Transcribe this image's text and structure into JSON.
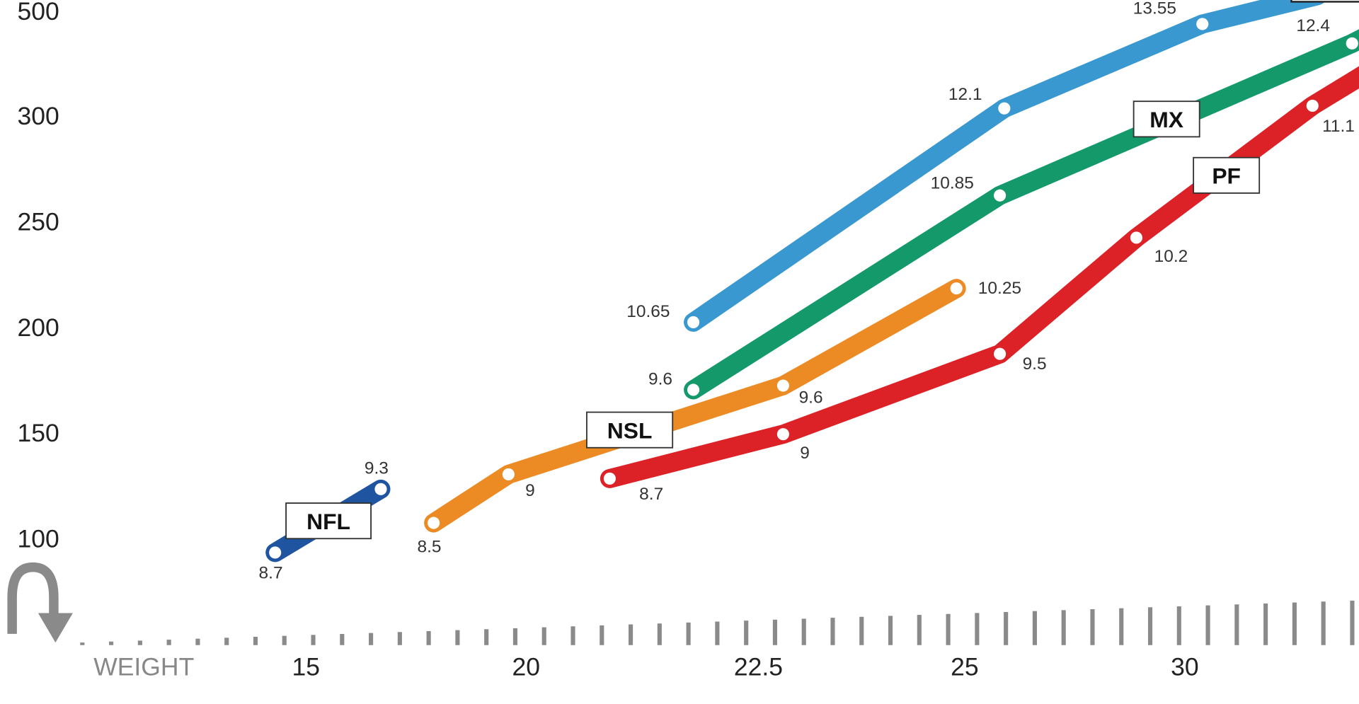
{
  "chart_data": {
    "type": "line",
    "title": "",
    "xlabel": "WEIGHT",
    "ylabel": "",
    "x_ticks": [
      "15",
      "20",
      "22.5",
      "25",
      "30"
    ],
    "y_ticks": [
      "500",
      "300",
      "250",
      "200",
      "150",
      "100"
    ],
    "grid": false,
    "series": [
      {
        "name": "NFL",
        "color": "#1f55a0",
        "points": [
          {
            "x": 14.3,
            "y": 93,
            "label": "8.7"
          },
          {
            "x": 16.7,
            "y": 123,
            "label": "9.3"
          }
        ]
      },
      {
        "name": "NSL",
        "color": "#ec8a23",
        "points": [
          {
            "x": 17.9,
            "y": 107,
            "label": "8.5"
          },
          {
            "x": 19.6,
            "y": 130,
            "label": "9"
          },
          {
            "x": 22.8,
            "y": 172,
            "label": "9.6"
          },
          {
            "x": 24.9,
            "y": 218,
            "label": "10.25"
          }
        ]
      },
      {
        "name": "PF",
        "color": "#dc2127",
        "points": [
          {
            "x": 20.9,
            "y": 128,
            "label": "8.7"
          },
          {
            "x": 22.8,
            "y": 149,
            "label": "9"
          },
          {
            "x": 25.8,
            "y": 187,
            "label": "9.5"
          },
          {
            "x": 28.9,
            "y": 242,
            "label": "10.2"
          },
          {
            "x": 32.9,
            "y": 318,
            "label": "11.1"
          }
        ]
      },
      {
        "name": "MX",
        "color": "#14996b",
        "points": [
          {
            "x": 21.8,
            "y": 170,
            "label": "9.6"
          },
          {
            "x": 25.8,
            "y": 262,
            "label": "10.85"
          },
          {
            "x": 33.8,
            "y": 437,
            "label": "12.4"
          }
        ]
      },
      {
        "name": "",
        "color": "#3a98d0",
        "points": [
          {
            "x": 21.8,
            "y": 202,
            "label": "10.65"
          },
          {
            "x": 25.9,
            "y": 313,
            "label": "12.1"
          },
          {
            "x": 30.4,
            "y": 474,
            "label": "13.55"
          }
        ]
      }
    ]
  }
}
